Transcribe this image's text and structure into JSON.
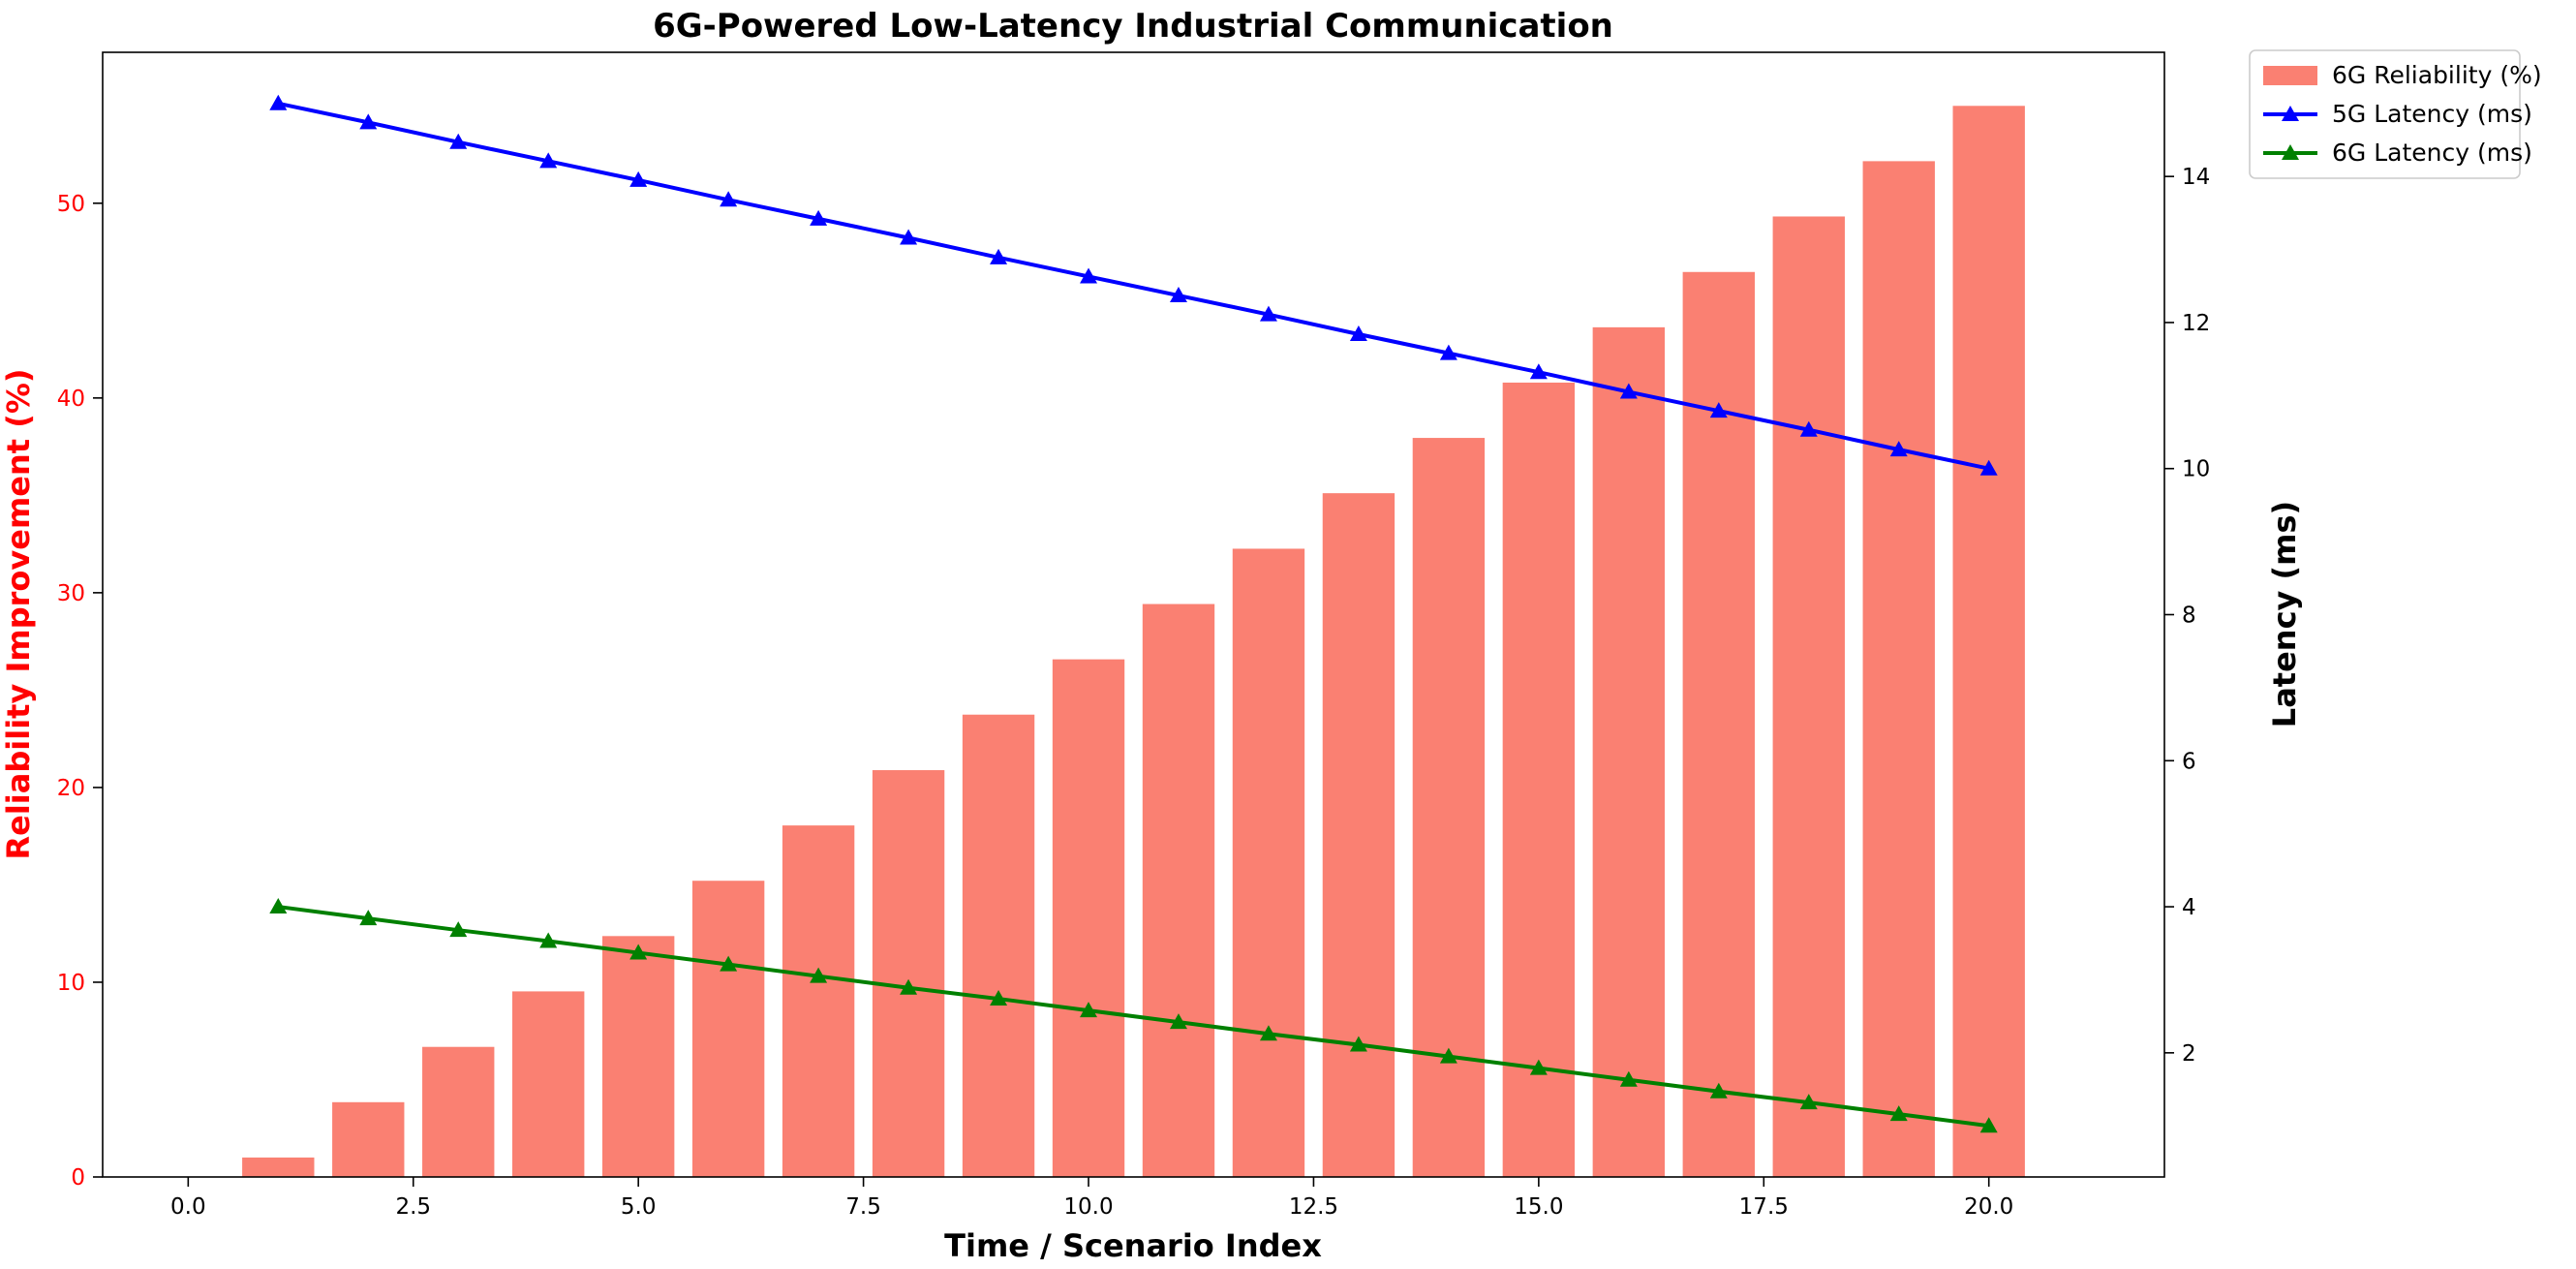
{
  "chart_data": {
    "type": "bar+line",
    "title": "6G-Powered Low-Latency Industrial Communication",
    "xlabel": "Time / Scenario Index",
    "ylabel_left": "Reliability Improvement (%)",
    "ylabel_right": "Latency (ms)",
    "left_label_color": "#ff0000",
    "x": [
      1,
      2,
      3,
      4,
      5,
      6,
      7,
      8,
      9,
      10,
      11,
      12,
      13,
      14,
      15,
      16,
      17,
      18,
      19,
      20
    ],
    "xlim": [
      -0.95,
      21.95
    ],
    "ylim_left": [
      0,
      57.75
    ],
    "ylim_right": [
      0.3,
      15.7
    ],
    "x_ticks": [
      0.0,
      2.5,
      5.0,
      7.5,
      10.0,
      12.5,
      15.0,
      17.5,
      20.0
    ],
    "x_tick_labels": [
      "0.0",
      "2.5",
      "5.0",
      "7.5",
      "10.0",
      "12.5",
      "15.0",
      "17.5",
      "20.0"
    ],
    "y_left_ticks": [
      0,
      10,
      20,
      30,
      40,
      50
    ],
    "y_left_tick_labels": [
      "0",
      "10",
      "20",
      "30",
      "40",
      "50"
    ],
    "y_right_ticks": [
      2,
      4,
      6,
      8,
      10,
      12,
      14
    ],
    "y_right_tick_labels": [
      "2",
      "4",
      "6",
      "8",
      "10",
      "12",
      "14"
    ],
    "bar_width": 0.8,
    "series": [
      {
        "name": "6G Reliability (%)",
        "type": "bar",
        "axis": "left",
        "color": "#fa8072",
        "values": [
          1.0,
          3.84,
          6.68,
          9.53,
          12.37,
          15.21,
          18.05,
          20.89,
          23.74,
          26.58,
          29.42,
          32.26,
          35.11,
          37.95,
          40.79,
          43.63,
          46.47,
          49.32,
          52.16,
          55.0
        ]
      },
      {
        "name": "5G Latency (ms)",
        "type": "line",
        "axis": "right",
        "marker": "triangle",
        "color": "#0000ff",
        "values": [
          15.0,
          14.74,
          14.47,
          14.21,
          13.95,
          13.68,
          13.42,
          13.16,
          12.89,
          12.63,
          12.37,
          12.11,
          11.84,
          11.58,
          11.32,
          11.05,
          10.79,
          10.53,
          10.26,
          10.0
        ]
      },
      {
        "name": "6G Latency (ms)",
        "type": "line",
        "axis": "right",
        "marker": "triangle",
        "color": "#008000",
        "values": [
          4.0,
          3.84,
          3.68,
          3.53,
          3.37,
          3.21,
          3.05,
          2.89,
          2.74,
          2.58,
          2.42,
          2.26,
          2.11,
          1.95,
          1.79,
          1.63,
          1.47,
          1.32,
          1.16,
          1.0
        ]
      }
    ],
    "legend": {
      "position": "outside-top-right",
      "entries": [
        "6G Reliability (%)",
        "5G Latency (ms)",
        "6G Latency (ms)"
      ]
    },
    "grid": false
  }
}
